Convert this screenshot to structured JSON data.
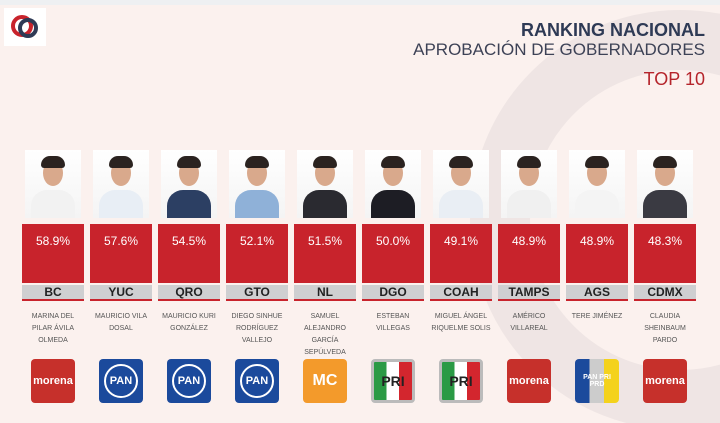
{
  "header": {
    "title": "RANKING NACIONAL",
    "subtitle": "APROBACIÓN DE GOBERNADORES",
    "badge": "TOP 10"
  },
  "colors": {
    "accent": "#c8232c",
    "title": "#2e3a55"
  },
  "governors": [
    {
      "percent": "58.9%",
      "state": "BC",
      "name": "Marina del Pilar Ávila Olmeda",
      "party": "morena",
      "suit": "#f2f2f2"
    },
    {
      "percent": "57.6%",
      "state": "YUC",
      "name": "Mauricio Vila Dosal",
      "party": "PAN",
      "suit": "#e8eef5"
    },
    {
      "percent": "54.5%",
      "state": "QRO",
      "name": "Mauricio Kuri González",
      "party": "PAN",
      "suit": "#2c3f63"
    },
    {
      "percent": "52.1%",
      "state": "GTO",
      "name": "Diego Sinhue Rodríguez Vallejo",
      "party": "PAN",
      "suit": "#8fb1d8"
    },
    {
      "percent": "51.5%",
      "state": "NL",
      "name": "Samuel Alejandro García Sepúlveda",
      "party": "MC",
      "suit": "#2a2a30"
    },
    {
      "percent": "50.0%",
      "state": "DGO",
      "name": "Esteban Villegas",
      "party": "PRI",
      "suit": "#1d1d24"
    },
    {
      "percent": "49.1%",
      "state": "COAH",
      "name": "Miguel Ángel Riquelme Solis",
      "party": "PRI",
      "suit": "#e9eef4"
    },
    {
      "percent": "48.9%",
      "state": "TAMPS",
      "name": "Américo Villareal",
      "party": "morena",
      "suit": "#f0f0f0"
    },
    {
      "percent": "48.9%",
      "state": "AGS",
      "name": "Tere Jiménez",
      "party": "PAN-PRI-PRD",
      "suit": "#f4f4f4"
    },
    {
      "percent": "48.3%",
      "state": "CDMX",
      "name": "Claudia Sheinbaum Pardo",
      "party": "morena",
      "suit": "#3a3a42"
    }
  ]
}
